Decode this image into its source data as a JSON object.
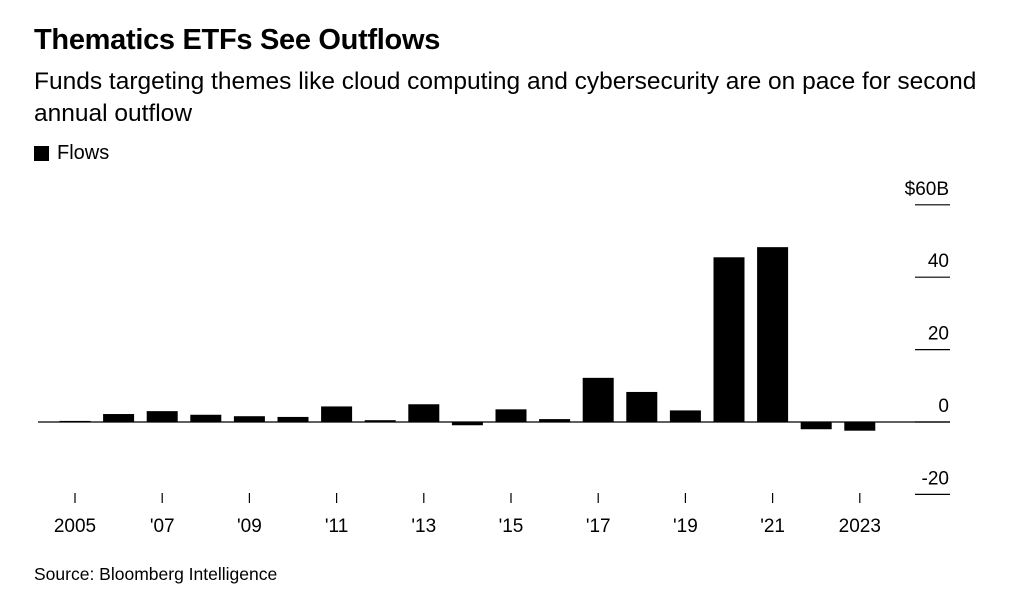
{
  "chart_data": {
    "type": "bar",
    "title": "Thematics ETFs See Outflows",
    "subtitle": "Funds targeting themes like cloud computing and cybersecurity are on pace for second annual outflow",
    "source": "Source: Bloomberg Intelligence",
    "legend": [
      "Flows"
    ],
    "legend_position": "top-left",
    "categories": [
      "2005",
      "2006",
      "2007",
      "2008",
      "2009",
      "2010",
      "2011",
      "2012",
      "2013",
      "2014",
      "2015",
      "2016",
      "2017",
      "2018",
      "2019",
      "2020",
      "2021",
      "2022",
      "2023"
    ],
    "series": [
      {
        "name": "Flows",
        "values": [
          0.3,
          2.2,
          3.0,
          2.0,
          1.6,
          1.4,
          4.3,
          0.5,
          4.9,
          -0.9,
          3.5,
          0.8,
          12.2,
          8.3,
          3.2,
          45.5,
          48.3,
          -2.0,
          -2.4
        ]
      }
    ],
    "x_tick_labels": [
      "2005",
      "'07",
      "'09",
      "'11",
      "'13",
      "'15",
      "'17",
      "'19",
      "'21",
      "2023"
    ],
    "y_tick_labels": [
      "$60B",
      "40",
      "20",
      "0",
      "-20"
    ],
    "y_ticks": [
      60,
      40,
      20,
      0,
      -20
    ],
    "ylim": [
      -20,
      60
    ],
    "y_axis_side": "right",
    "grid": false,
    "colors": {
      "bar": "#000000",
      "zero_line": "#000000",
      "text": "#000000"
    }
  }
}
